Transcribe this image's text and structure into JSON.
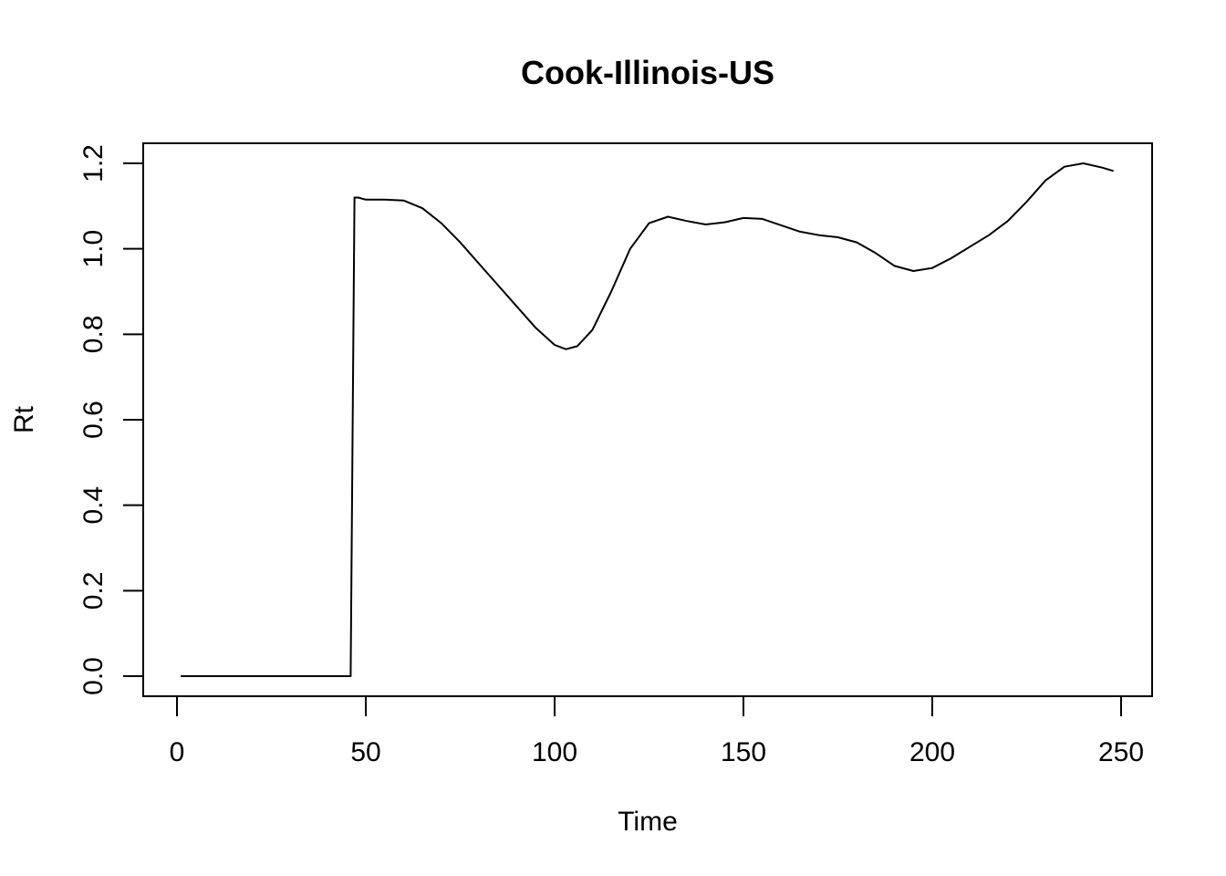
{
  "chart_data": {
    "type": "line",
    "title": "Cook-Illinois-US",
    "xlabel": "Time",
    "ylabel": "Rt",
    "xlim": [
      1,
      248
    ],
    "ylim": [
      0,
      1.2
    ],
    "x_ticks": [
      0,
      50,
      100,
      150,
      200,
      250
    ],
    "y_ticks": [
      0.0,
      0.2,
      0.4,
      0.6,
      0.8,
      1.0,
      1.2
    ],
    "x_tick_labels": [
      "0",
      "50",
      "100",
      "150",
      "200",
      "250"
    ],
    "y_tick_labels": [
      "0.0",
      "0.2",
      "0.4",
      "0.6",
      "0.8",
      "1.0",
      "1.2"
    ],
    "grid": false,
    "series": [
      {
        "color": "#000000",
        "x": [
          1,
          10,
          20,
          30,
          40,
          46,
          47,
          48,
          50,
          55,
          60,
          65,
          70,
          75,
          80,
          85,
          90,
          95,
          100,
          103,
          106,
          110,
          115,
          120,
          125,
          130,
          135,
          140,
          145,
          150,
          155,
          160,
          165,
          170,
          175,
          180,
          185,
          190,
          195,
          200,
          205,
          210,
          215,
          220,
          225,
          230,
          235,
          240,
          245,
          248
        ],
        "y": [
          0,
          0,
          0,
          0,
          0,
          0,
          1.12,
          1.12,
          1.115,
          1.115,
          1.113,
          1.095,
          1.06,
          1.015,
          0.965,
          0.915,
          0.865,
          0.815,
          0.775,
          0.765,
          0.772,
          0.81,
          0.9,
          1.0,
          1.06,
          1.075,
          1.065,
          1.057,
          1.062,
          1.072,
          1.07,
          1.055,
          1.04,
          1.032,
          1.027,
          1.015,
          0.99,
          0.96,
          0.948,
          0.955,
          0.978,
          1.005,
          1.032,
          1.065,
          1.11,
          1.16,
          1.192,
          1.2,
          1.19,
          1.182
        ]
      }
    ]
  }
}
